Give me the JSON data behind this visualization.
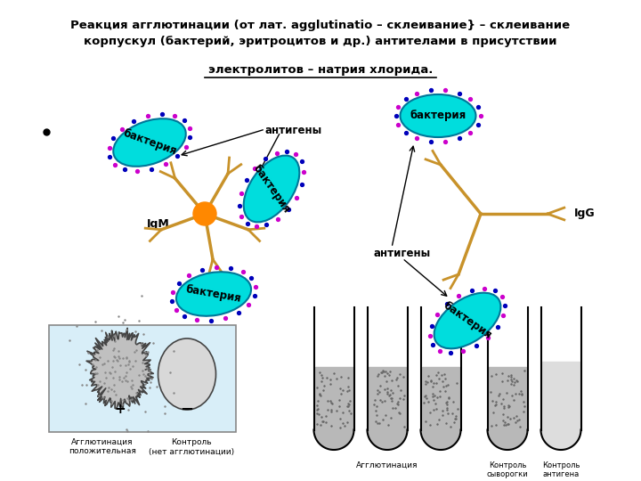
{
  "title_line1": "Реакция агглютинации (от лат. agglutinatio – склеивание} – склеивание",
  "title_line2": "корпускул (бактерий, эритроцитов и др.) антителами в присутствии",
  "title_line3": "электролитов – натрия хлорида.",
  "bg_color": "#ffffff",
  "text_color": "#000000",
  "cyan_color": "#00dddd",
  "orange_color": "#ff8800",
  "arm_color": "#c8922a",
  "label_bacteria": "бактерия",
  "label_antigens": "антигены",
  "label_IgM": "IgM",
  "label_IgG": "IgG"
}
